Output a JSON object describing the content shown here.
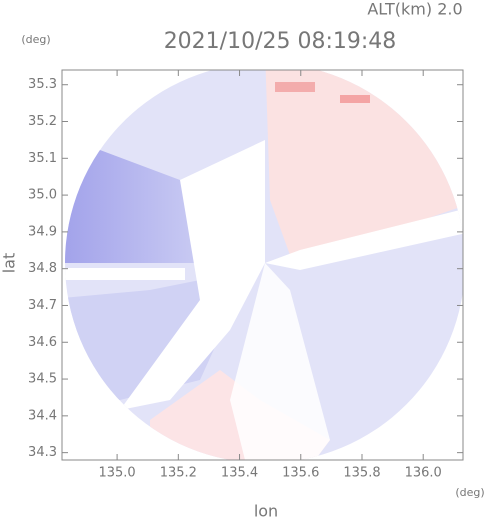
{
  "chart_data": {
    "type": "image",
    "title": "2021/10/25 08:19:48",
    "subtitle": "ALT(km) 2.0",
    "y_unit": "(deg)",
    "x_unit": "(deg)",
    "ylabel": "lat",
    "xlabel": "lon",
    "xlim": [
      134.82,
      136.13
    ],
    "ylim": [
      34.28,
      35.34
    ],
    "xticks": [
      {
        "value": 135.0,
        "label": "135.0"
      },
      135.2,
      135.4,
      135.6,
      135.8,
      {
        "value": 136.0,
        "label": "136.0"
      }
    ],
    "yticks": [
      35.3,
      35.2,
      35.1,
      {
        "value": 35.0,
        "label": "35.0"
      },
      34.9,
      34.8,
      34.7,
      34.6,
      34.5,
      34.4,
      34.3
    ]
  }
}
